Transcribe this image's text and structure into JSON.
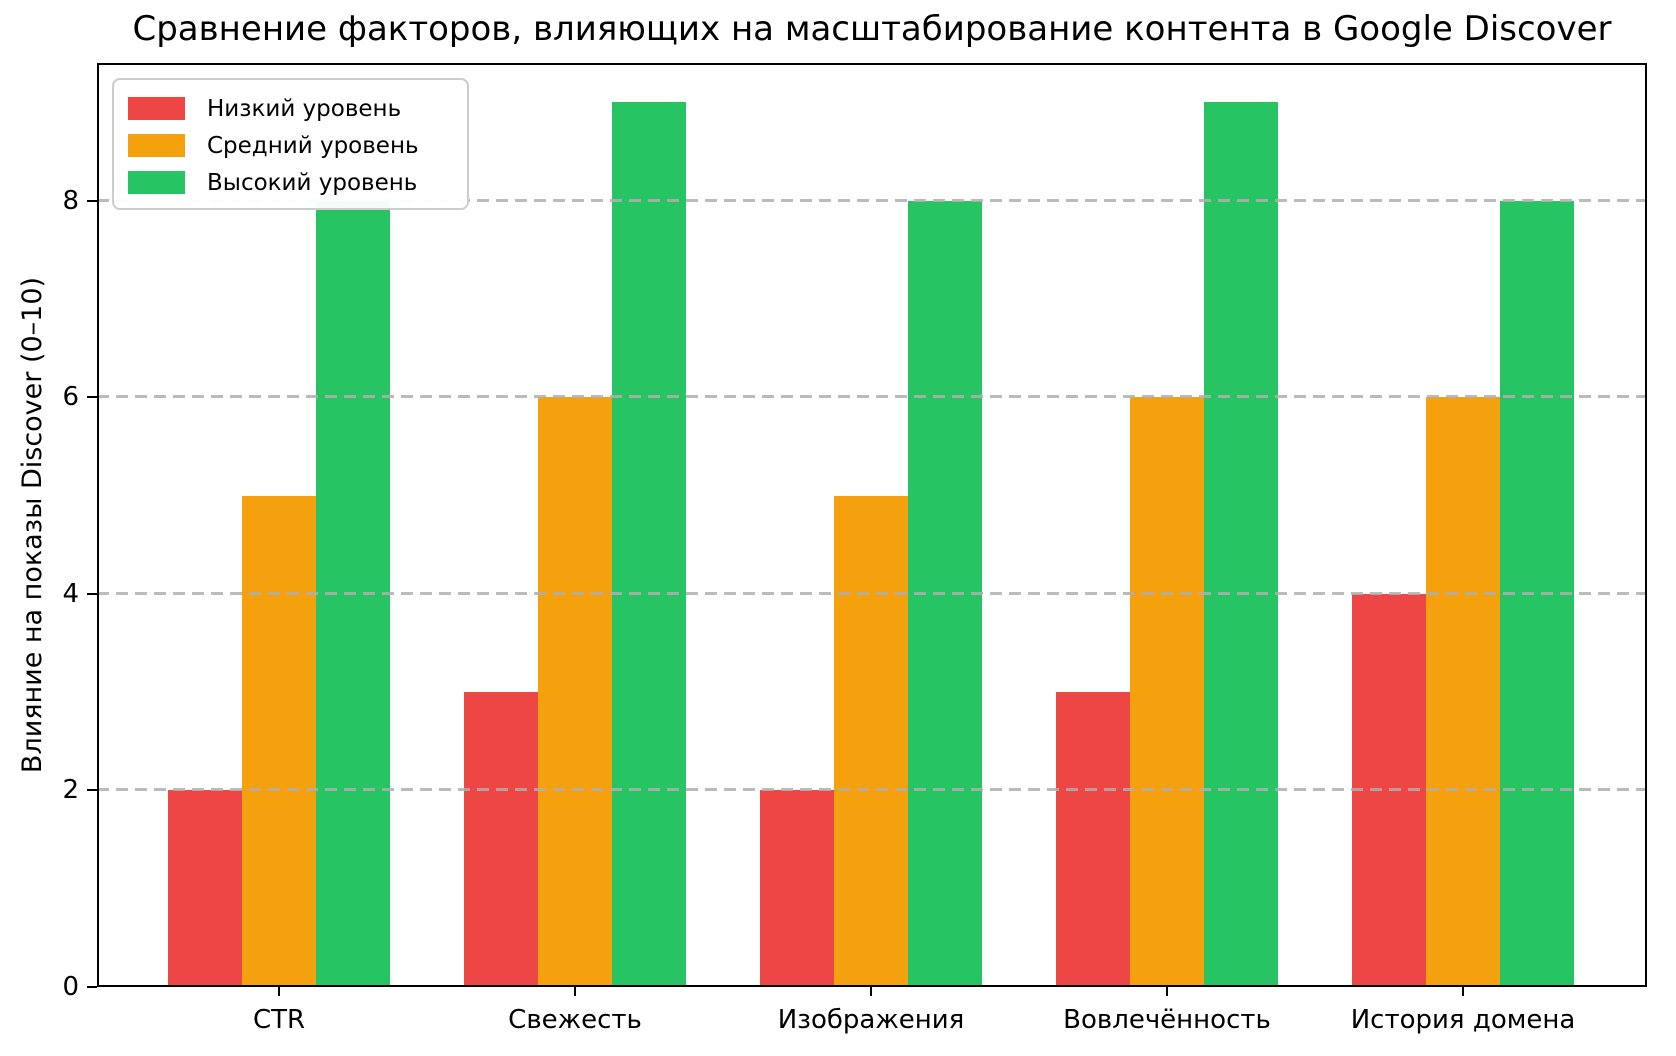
{
  "chart_data": {
    "type": "bar",
    "title": "Сравнение факторов, влияющих на масштабирование контента в Google Discover",
    "ylabel": "Влияние на показы Discover (0–10)",
    "xlabel": "",
    "categories": [
      "CTR",
      "Свежесть",
      "Изображения",
      "Вовлечённость",
      "История домена"
    ],
    "series": [
      {
        "name": "Низкий уровень",
        "color": "#ee4545",
        "values": [
          2,
          3,
          2,
          3,
          4
        ]
      },
      {
        "name": "Средний уровень",
        "color": "#f5a00d",
        "values": [
          5,
          6,
          5,
          6,
          6
        ]
      },
      {
        "name": "Высокий уровень",
        "color": "#27c463",
        "values": [
          8,
          9,
          8,
          9,
          8
        ]
      }
    ],
    "yticks": [
      0,
      2,
      4,
      6,
      8
    ],
    "ylim": [
      0,
      9.4
    ],
    "grid": "horizontal-dashed",
    "legend_position": "upper-left"
  },
  "colors": {
    "background": "#ffffff",
    "spine": "#000000",
    "grid": "#afafaf",
    "legend_border": "#cccccc",
    "text": "#000000"
  }
}
